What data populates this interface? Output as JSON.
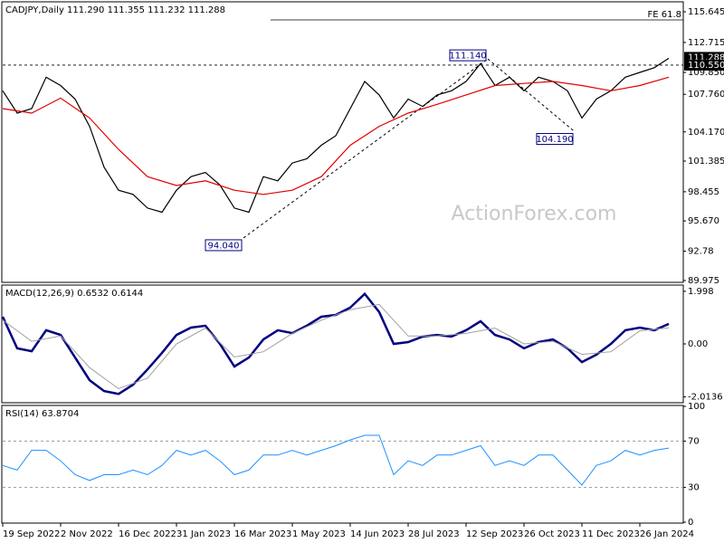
{
  "chart_data": [
    {
      "type": "line",
      "title": "CADJPY,Daily  111.290 111.355 111.232 111.288",
      "watermark": "ActionForex.com",
      "xlim": [
        0,
        376
      ],
      "ylim": [
        89.8,
        116.51
      ],
      "yticks": [
        115.645,
        112.715,
        {
          "value": 109.85,
          "label": "109.850"
        },
        {
          "value": 107.76,
          "label": "107.760"
        },
        {
          "value": 104.17,
          "label": "104.170"
        },
        101.385,
        98.455,
        {
          "value": 95.67,
          "label": "95.670"
        },
        92.78,
        89.975
      ],
      "axis_labels": [
        {
          "value": 111.288,
          "label": "111.288",
          "color": "#000000"
        },
        {
          "value": 110.55,
          "label": "110.550",
          "color": "#000000"
        }
      ],
      "series": [
        {
          "name": "CADJPY",
          "color": "#000000",
          "x": [
            0,
            8,
            16,
            24,
            32,
            40,
            48,
            56,
            64,
            72,
            80,
            88,
            96,
            104,
            112,
            120,
            128,
            136,
            144,
            152,
            160,
            168,
            176,
            184,
            192,
            200,
            208,
            216,
            224,
            232,
            240,
            248,
            256,
            264,
            272,
            280,
            288,
            296,
            304,
            312,
            320,
            328,
            336,
            344,
            352,
            360,
            368
          ],
          "values": [
            108.1,
            105.96,
            106.4,
            109.4,
            108.6,
            107.3,
            104.7,
            100.8,
            98.6,
            98.2,
            96.9,
            96.5,
            98.6,
            99.9,
            100.3,
            99.1,
            96.9,
            96.5,
            99.9,
            99.5,
            101.2,
            101.6,
            102.9,
            103.8,
            106.4,
            108.99,
            107.7,
            105.5,
            107.3,
            106.6,
            107.7,
            108.1,
            108.99,
            110.7,
            108.6,
            109.4,
            108.1,
            109.4,
            108.99,
            108.1,
            105.5,
            107.3,
            108.1,
            109.4,
            109.85,
            110.3,
            111.2
          ]
        },
        {
          "name": "MA",
          "color": "#e00000",
          "x": [
            0,
            16,
            32,
            48,
            64,
            80,
            96,
            112,
            128,
            144,
            160,
            176,
            192,
            208,
            224,
            240,
            256,
            272,
            288,
            304,
            320,
            336,
            352,
            368
          ],
          "values": [
            106.4,
            105.96,
            107.4,
            105.5,
            102.5,
            99.9,
            99.05,
            99.5,
            98.6,
            98.2,
            98.6,
            99.9,
            102.9,
            104.7,
            105.96,
            106.8,
            107.7,
            108.6,
            108.8,
            108.99,
            108.6,
            108.1,
            108.6,
            109.4
          ]
        }
      ],
      "levels": [
        {
          "text": "FE 61.8",
          "value": 114.87,
          "from": 148,
          "style": "solid"
        },
        {
          "value": 110.55,
          "from": 0,
          "style": "dashed"
        }
      ],
      "trendlines": [
        {
          "x": [
            133,
            268
          ],
          "y": [
            94.04,
            111.14
          ]
        },
        {
          "x": [
            268,
            316
          ],
          "y": [
            111.14,
            104.19
          ]
        }
      ],
      "annotations": [
        {
          "text": "111.140",
          "x": 268,
          "y": 111.14
        },
        {
          "text": "104.190",
          "x": 316,
          "y": 104.19
        },
        {
          "text": "94.040",
          "x": 133,
          "y": 94.04
        }
      ]
    },
    {
      "type": "line",
      "title": "MACD(12,26,9) 0.6532 0.6144",
      "xlim": [
        0,
        376
      ],
      "ylim": [
        -2.2,
        2.2
      ],
      "yticks": [
        1.998,
        {
          "value": 0,
          "label": "0.00"
        },
        -2.0136
      ],
      "series": [
        {
          "name": "MACD",
          "color": "#000080",
          "width": 2.5,
          "x": [
            0,
            8,
            16,
            24,
            32,
            40,
            48,
            56,
            64,
            72,
            80,
            88,
            96,
            104,
            112,
            120,
            128,
            136,
            144,
            152,
            160,
            168,
            176,
            184,
            192,
            200,
            208,
            216,
            224,
            232,
            240,
            248,
            256,
            264,
            272,
            280,
            288,
            296,
            304,
            312,
            320,
            328,
            336,
            344,
            352,
            360,
            368
          ],
          "values": [
            1.03,
            -0.17,
            -0.28,
            0.52,
            0.34,
            -0.52,
            -1.38,
            -1.79,
            -1.9,
            -1.55,
            -0.97,
            -0.34,
            0.34,
            0.62,
            0.69,
            0,
            -0.86,
            -0.52,
            0.17,
            0.52,
            0.41,
            0.69,
            1.03,
            1.1,
            1.38,
            1.9,
            1.21,
            0,
            0.07,
            0.28,
            0.34,
            0.28,
            0.52,
            0.86,
            0.34,
            0.17,
            -0.17,
            0.07,
            0.17,
            -0.17,
            -0.69,
            -0.41,
            0,
            0.52,
            0.62,
            0.52,
            0.76
          ]
        },
        {
          "name": "Signal",
          "color": "#a0a0a0",
          "width": 1,
          "x": [
            0,
            16,
            32,
            48,
            64,
            80,
            96,
            112,
            128,
            144,
            160,
            176,
            192,
            208,
            224,
            240,
            256,
            272,
            288,
            304,
            320,
            336,
            352,
            368
          ],
          "values": [
            0.9,
            0.1,
            0.3,
            -0.9,
            -1.7,
            -1.3,
            0,
            0.6,
            -0.5,
            -0.3,
            0.4,
            0.9,
            1.3,
            1.5,
            0.3,
            0.3,
            0.4,
            0.6,
            0,
            0.1,
            -0.4,
            -0.3,
            0.5,
            0.61
          ]
        }
      ]
    },
    {
      "type": "line",
      "title": "RSI(14) 63.8704",
      "xlim": [
        0,
        376
      ],
      "ylim": [
        0,
        100
      ],
      "yticks": [
        100,
        70,
        30,
        0
      ],
      "xticks": [
        {
          "value": 0,
          "label": "19 Sep 2022"
        },
        {
          "value": 32,
          "label": "2 Nov 2022"
        },
        {
          "value": 64,
          "label": "16 Dec 2022"
        },
        {
          "value": 96,
          "label": "31 Jan 2023"
        },
        {
          "value": 128,
          "label": "16 Mar 2023"
        },
        {
          "value": 160,
          "label": "1 May 2023"
        },
        {
          "value": 192,
          "label": "14 Jun 2023"
        },
        {
          "value": 224,
          "label": "28 Jul 2023"
        },
        {
          "value": 256,
          "label": "12 Sep 2023"
        },
        {
          "value": 288,
          "label": "26 Oct 2023"
        },
        {
          "value": 320,
          "label": "11 Dec 2023"
        },
        {
          "value": 352,
          "label": "26 Jan 2024"
        }
      ],
      "series": [
        {
          "name": "RSI",
          "color": "#1e90ff",
          "width": 1,
          "x": [
            0,
            8,
            16,
            24,
            32,
            40,
            48,
            56,
            64,
            72,
            80,
            88,
            96,
            104,
            112,
            120,
            128,
            136,
            144,
            152,
            160,
            168,
            176,
            184,
            192,
            200,
            208,
            216,
            224,
            232,
            240,
            248,
            256,
            264,
            272,
            280,
            288,
            296,
            304,
            312,
            320,
            328,
            336,
            344,
            352,
            360,
            368
          ],
          "values": [
            49,
            45,
            62,
            62,
            53,
            41,
            36,
            41,
            41,
            45,
            41,
            49,
            62,
            58,
            62,
            53,
            41,
            45,
            58,
            58,
            62,
            58,
            62,
            66,
            71,
            75,
            75,
            41,
            53,
            49,
            58,
            58,
            62,
            66,
            49,
            53,
            49,
            58,
            58,
            45,
            32,
            49,
            53,
            62,
            58,
            62,
            64
          ]
        }
      ]
    }
  ]
}
